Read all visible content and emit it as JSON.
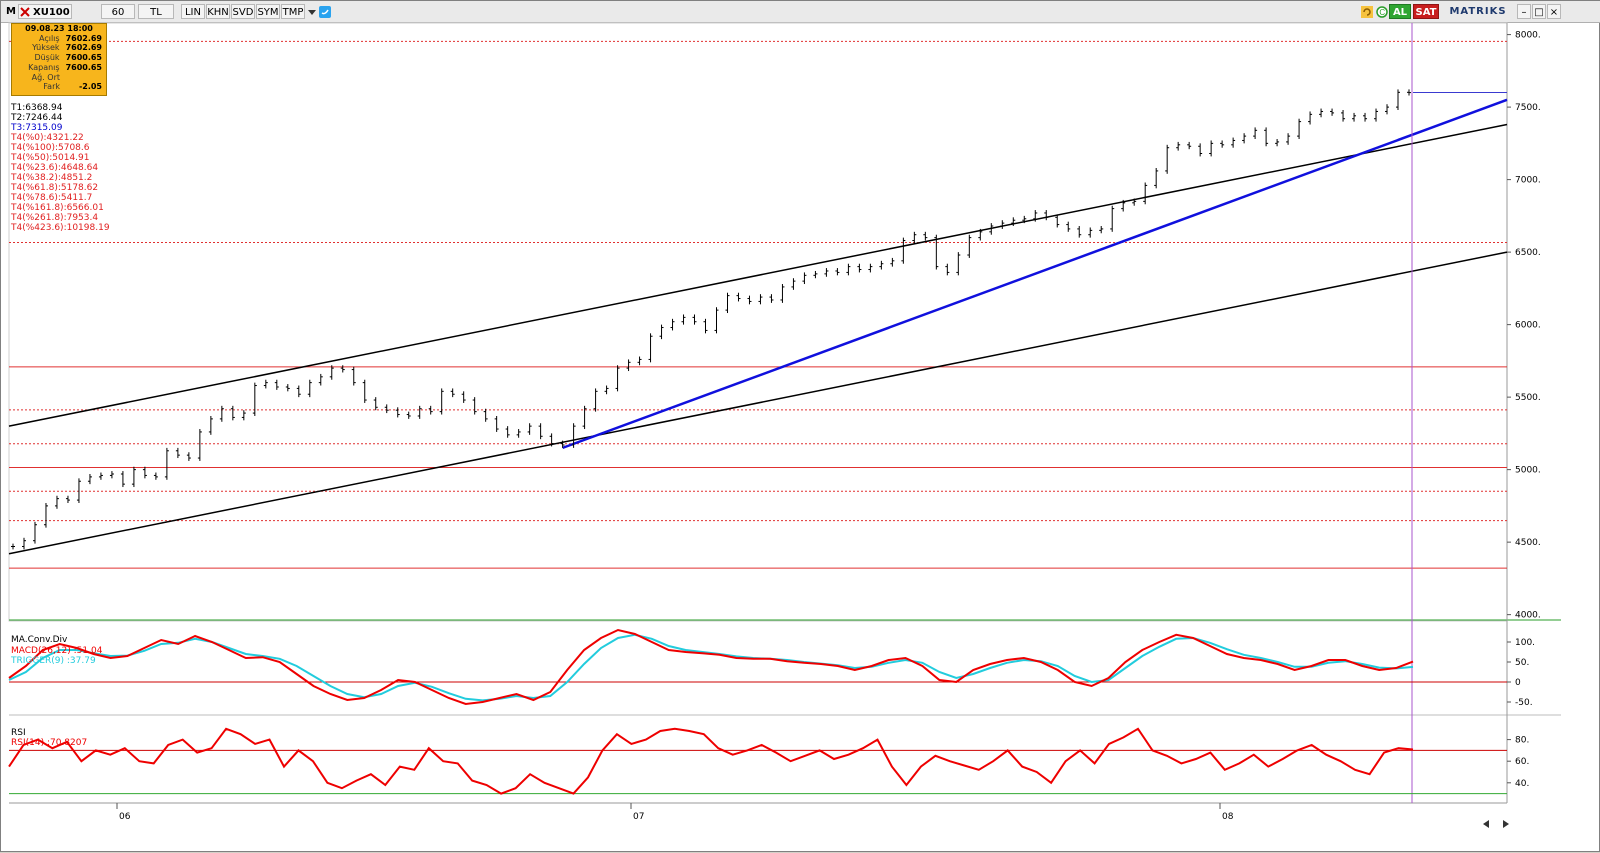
{
  "toolbar": {
    "symbol_icon": "M",
    "symbol": "XU100",
    "period": "60",
    "currency": "TL",
    "buttons": [
      "LIN",
      "KHN",
      "SVD",
      "SYM",
      "TMP"
    ],
    "buy_label": "AL",
    "sell_label": "SAT",
    "brand": "MATRIKS",
    "icons": [
      "dropdown-icon",
      "twitter-icon",
      "refresh-icon",
      "circle-c-icon",
      "minimize-icon",
      "maximize-icon",
      "close-icon"
    ]
  },
  "info_box": {
    "date": "09.08.23 18:00",
    "rows": [
      {
        "label": "Açılış",
        "value": "7602.69"
      },
      {
        "label": "Yüksek",
        "value": "7602.69"
      },
      {
        "label": "Düşük",
        "value": "7600.65"
      },
      {
        "label": "Kapanış",
        "value": "7600.65"
      },
      {
        "label": "Ağ. Ort",
        "value": ""
      },
      {
        "label": "Fark",
        "value": "-2.05"
      }
    ]
  },
  "targets": [
    {
      "text": "T1:6368.94",
      "color": "#000000"
    },
    {
      "text": "T2:7246.44",
      "color": "#000000"
    },
    {
      "text": "T3:7315.09",
      "color": "#0000cc"
    },
    {
      "text": "T4(%0):4321.22",
      "color": "#e02020"
    },
    {
      "text": "T4(%100):5708.6",
      "color": "#e02020"
    },
    {
      "text": "T4(%50):5014.91",
      "color": "#e02020"
    },
    {
      "text": "T4(%23.6):4648.64",
      "color": "#e02020"
    },
    {
      "text": "T4(%38.2):4851.2",
      "color": "#e02020"
    },
    {
      "text": "T4(%61.8):5178.62",
      "color": "#e02020"
    },
    {
      "text": "T4(%78.6):5411.7",
      "color": "#e02020"
    },
    {
      "text": "T4(%161.8):6566.01",
      "color": "#e02020"
    },
    {
      "text": "T4(%261.8):7953.4",
      "color": "#e02020"
    },
    {
      "text": "T4(%423.6):10198.19",
      "color": "#e02020"
    }
  ],
  "colors": {
    "price": "#000000",
    "channel": "#000000",
    "trend": "#1010dd",
    "fib": "#e03030",
    "macd": "#ee0000",
    "trigger": "#22ccdd",
    "rsi": "#ee0000",
    "rsi_upper": "#cc0000",
    "rsi_lower": "#33aa33",
    "cursor": "#aa55cc"
  },
  "chart_data": [
    {
      "type": "line",
      "name": "price",
      "x_ticks": [
        "06",
        "07",
        "08"
      ],
      "ylim": [
        3970,
        8080
      ],
      "y_ticks": [
        4000,
        4500,
        5000,
        5500,
        6000,
        6500,
        7000,
        7500,
        8000
      ],
      "y_tick_labels": [
        "4000.",
        "4500.",
        "5000.",
        "5500.",
        "6000.",
        "6500.",
        "7000.",
        "7500.",
        "8000."
      ],
      "series": [
        {
          "values": [
            4470,
            4510,
            4620,
            4750,
            4800,
            4790,
            4920,
            4950,
            4960,
            4970,
            4900,
            5000,
            4960,
            4950,
            5130,
            5100,
            5080,
            5260,
            5350,
            5420,
            5360,
            5390,
            5580,
            5600,
            5570,
            5560,
            5520,
            5600,
            5640,
            5700,
            5690,
            5600,
            5480,
            5430,
            5410,
            5380,
            5370,
            5420,
            5400,
            5540,
            5520,
            5480,
            5400,
            5350,
            5280,
            5240,
            5260,
            5300,
            5230,
            5180,
            5170,
            5300,
            5420,
            5540,
            5560,
            5700,
            5740,
            5760,
            5920,
            5980,
            6020,
            6050,
            6020,
            5960,
            6100,
            6200,
            6180,
            6160,
            6190,
            6170,
            6260,
            6300,
            6340,
            6350,
            6370,
            6360,
            6400,
            6380,
            6400,
            6420,
            6440,
            6580,
            6620,
            6600,
            6400,
            6360,
            6480,
            6600,
            6640,
            6680,
            6700,
            6720,
            6730,
            6770,
            6740,
            6690,
            6660,
            6620,
            6650,
            6660,
            6800,
            6840,
            6850,
            6960,
            7060,
            7220,
            7240,
            7230,
            7180,
            7250,
            7240,
            7270,
            7300,
            7340,
            7250,
            7260,
            7300,
            7400,
            7450,
            7470,
            7460,
            7420,
            7440,
            7420,
            7470,
            7500,
            7602,
            7600
          ]
        }
      ],
      "fib_levels_solid": [
        4321.22,
        5014.91,
        5708.6
      ],
      "fib_levels_dashed": [
        4648.64,
        4851.2,
        5178.62,
        5411.7,
        6566.01,
        7953.4
      ],
      "last_price": 7600.65
    },
    {
      "type": "line",
      "name": "MA.Conv.Div",
      "title": "MA.Conv.Div",
      "ylim": [
        -75,
        140
      ],
      "y_ticks": [
        -50,
        0,
        50,
        100
      ],
      "y_tick_labels": [
        "-50.",
        "0",
        "50.",
        "100."
      ],
      "series": [
        {
          "name": "MACD(26,12)",
          "label": "MACD(26,12)   :51.04",
          "values": [
            10,
            40,
            80,
            95,
            85,
            70,
            60,
            65,
            85,
            105,
            95,
            115,
            100,
            80,
            60,
            62,
            50,
            20,
            -10,
            -30,
            -45,
            -40,
            -20,
            5,
            0,
            -20,
            -40,
            -55,
            -50,
            -40,
            -30,
            -45,
            -25,
            30,
            80,
            110,
            130,
            120,
            100,
            80,
            75,
            72,
            68,
            60,
            58,
            58,
            52,
            48,
            45,
            40,
            30,
            40,
            55,
            60,
            40,
            5,
            0,
            30,
            45,
            55,
            60,
            50,
            30,
            0,
            -10,
            10,
            50,
            80,
            100,
            118,
            110,
            90,
            70,
            60,
            55,
            45,
            30,
            40,
            55,
            55,
            40,
            30,
            35,
            51
          ]
        },
        {
          "name": "TRIGGER(9)",
          "label": "TRIGGER(9)   :37.79",
          "values": [
            5,
            25,
            60,
            80,
            80,
            72,
            65,
            66,
            78,
            95,
            98,
            108,
            100,
            85,
            70,
            65,
            58,
            40,
            15,
            -10,
            -30,
            -38,
            -30,
            -10,
            -2,
            -12,
            -28,
            -42,
            -46,
            -42,
            -35,
            -40,
            -35,
            0,
            45,
            85,
            110,
            118,
            108,
            90,
            80,
            75,
            70,
            64,
            60,
            58,
            55,
            50,
            46,
            42,
            35,
            38,
            48,
            55,
            48,
            25,
            10,
            20,
            35,
            48,
            55,
            52,
            40,
            15,
            0,
            5,
            35,
            65,
            88,
            108,
            110,
            98,
            82,
            68,
            60,
            50,
            38,
            38,
            48,
            52,
            45,
            36,
            34,
            37.79
          ]
        }
      ]
    },
    {
      "type": "line",
      "name": "RSI",
      "title": "RSI",
      "ylim": [
        25,
        100
      ],
      "y_ticks": [
        40,
        60,
        80
      ],
      "y_tick_labels": [
        "40.",
        "60.",
        "80."
      ],
      "upper_band": 70,
      "lower_band": 30,
      "series": [
        {
          "name": "RSI(14)",
          "label": "RSI(14)      :70.8207",
          "values": [
            55,
            75,
            80,
            72,
            78,
            60,
            70,
            66,
            72,
            60,
            58,
            75,
            80,
            68,
            72,
            90,
            85,
            76,
            80,
            55,
            70,
            60,
            40,
            35,
            42,
            48,
            38,
            55,
            52,
            72,
            60,
            58,
            42,
            38,
            30,
            35,
            48,
            40,
            35,
            30,
            45,
            70,
            85,
            76,
            80,
            88,
            90,
            88,
            85,
            72,
            66,
            70,
            75,
            68,
            60,
            65,
            70,
            62,
            66,
            72,
            80,
            55,
            38,
            55,
            65,
            60,
            56,
            52,
            60,
            70,
            55,
            50,
            40,
            60,
            70,
            58,
            76,
            82,
            90,
            70,
            65,
            58,
            62,
            68,
            52,
            58,
            66,
            55,
            62,
            70,
            75,
            66,
            60,
            52,
            48,
            68,
            72,
            70.82
          ]
        }
      ]
    }
  ]
}
